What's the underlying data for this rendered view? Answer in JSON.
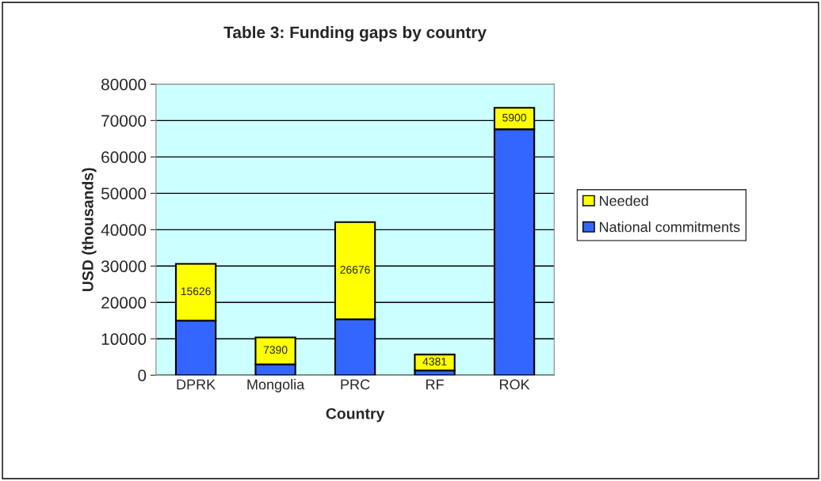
{
  "chart_data": {
    "type": "bar",
    "title": "Table 3: Funding gaps by country",
    "xlabel": "Country",
    "ylabel": "USD (thousands)",
    "categories": [
      "DPRK",
      "Mongolia",
      "PRC",
      "RF",
      "ROK"
    ],
    "stacked": true,
    "series": [
      {
        "name": "National commitments",
        "color": "#3366ff",
        "values": [
          15000,
          3000,
          15400,
          1300,
          67600
        ]
      },
      {
        "name": "Needed",
        "color": "#ffff00",
        "values": [
          15626,
          7390,
          26676,
          4381,
          5900
        ],
        "value_labels": [
          "15626",
          "7390",
          "26676",
          "4381",
          "5900"
        ]
      }
    ],
    "ylim": [
      0,
      80000
    ],
    "yticks": [
      0,
      10000,
      20000,
      30000,
      40000,
      50000,
      60000,
      70000,
      80000
    ],
    "grid": "y",
    "legend": "right"
  }
}
